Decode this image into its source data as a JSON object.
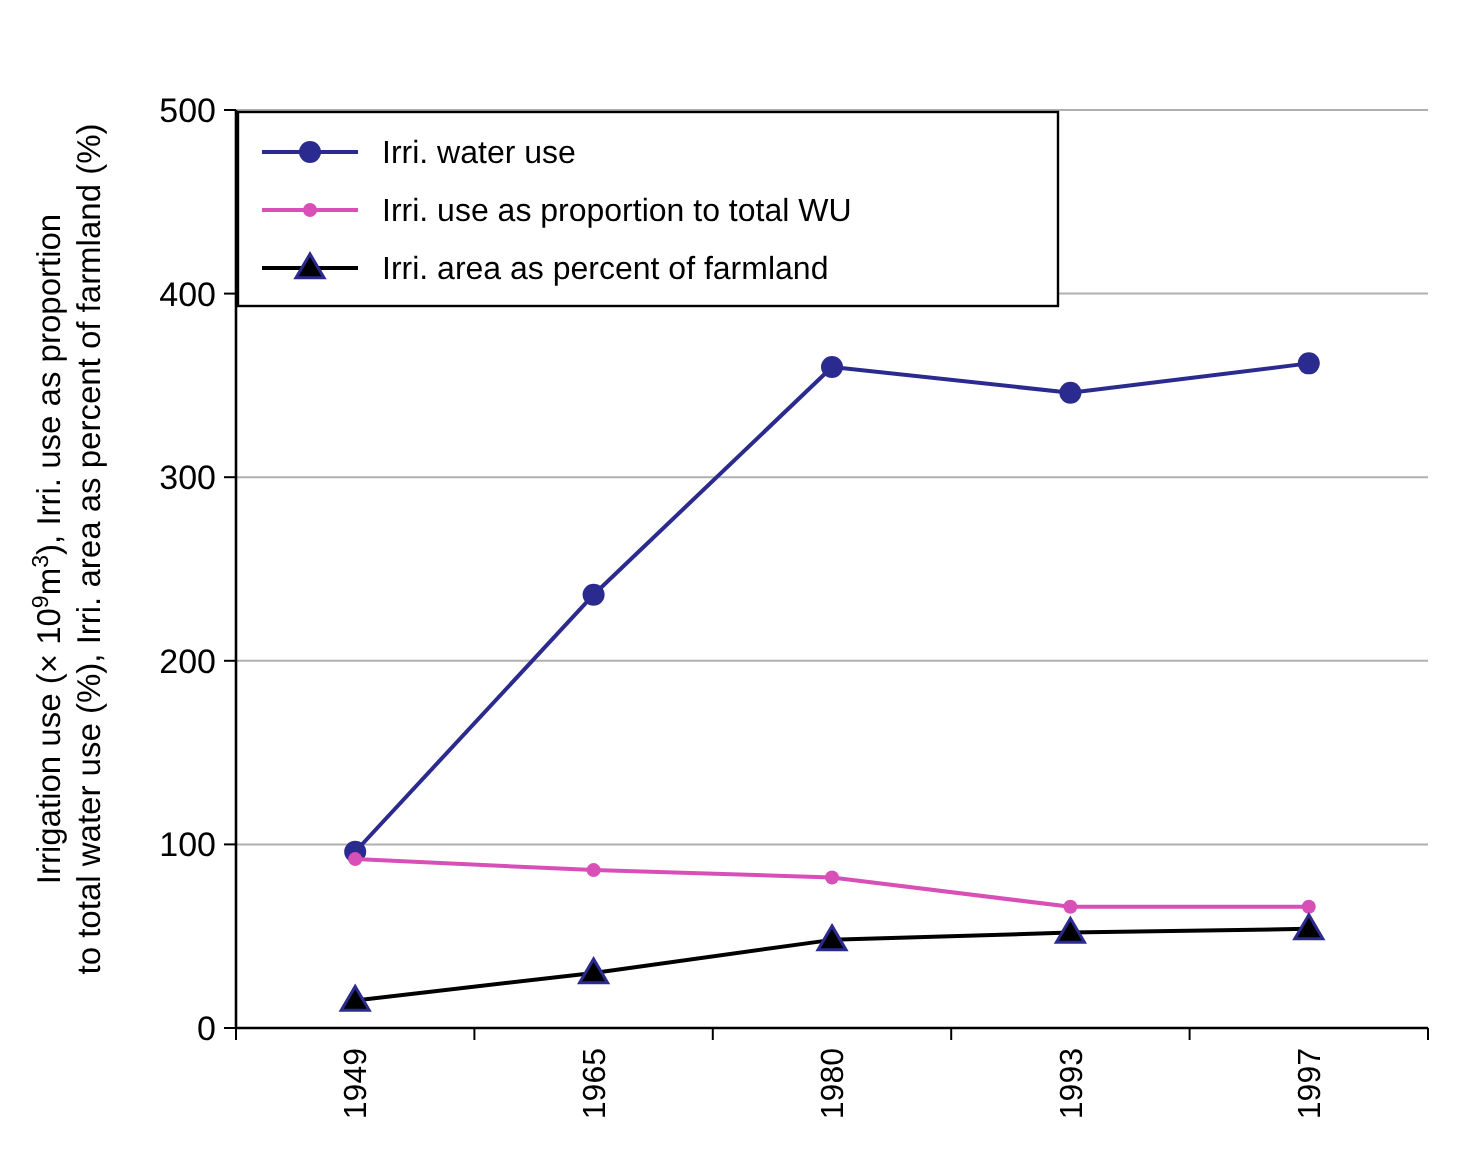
{
  "chart_data": {
    "type": "line",
    "categories": [
      "1949",
      "1965",
      "1980",
      "1993",
      "1997"
    ],
    "ylabel": "Irrigation use (× 10$^{9}$m$^{3}$), Irri. use as proportion to total water use (%), Irri. area as percent of farmland (%)",
    "ylim": [
      0,
      500
    ],
    "yticks": [
      0,
      100,
      200,
      300,
      400,
      500
    ],
    "grid": "y",
    "legend": "top left",
    "series": [
      {
        "name": "Irri. water use",
        "color": "#2b2b8f",
        "marker": "circle",
        "values": [
          96,
          236,
          360,
          346,
          362
        ]
      },
      {
        "name": "Irri. use as proportion to total WU",
        "color": "#d94fb8",
        "marker": "circle",
        "values": [
          92,
          86,
          82,
          66,
          66
        ]
      },
      {
        "name": "Irri. area as percent of farmland",
        "color": "#000000",
        "marker": "triangle",
        "values": [
          15,
          30,
          48,
          52,
          54
        ]
      }
    ]
  }
}
